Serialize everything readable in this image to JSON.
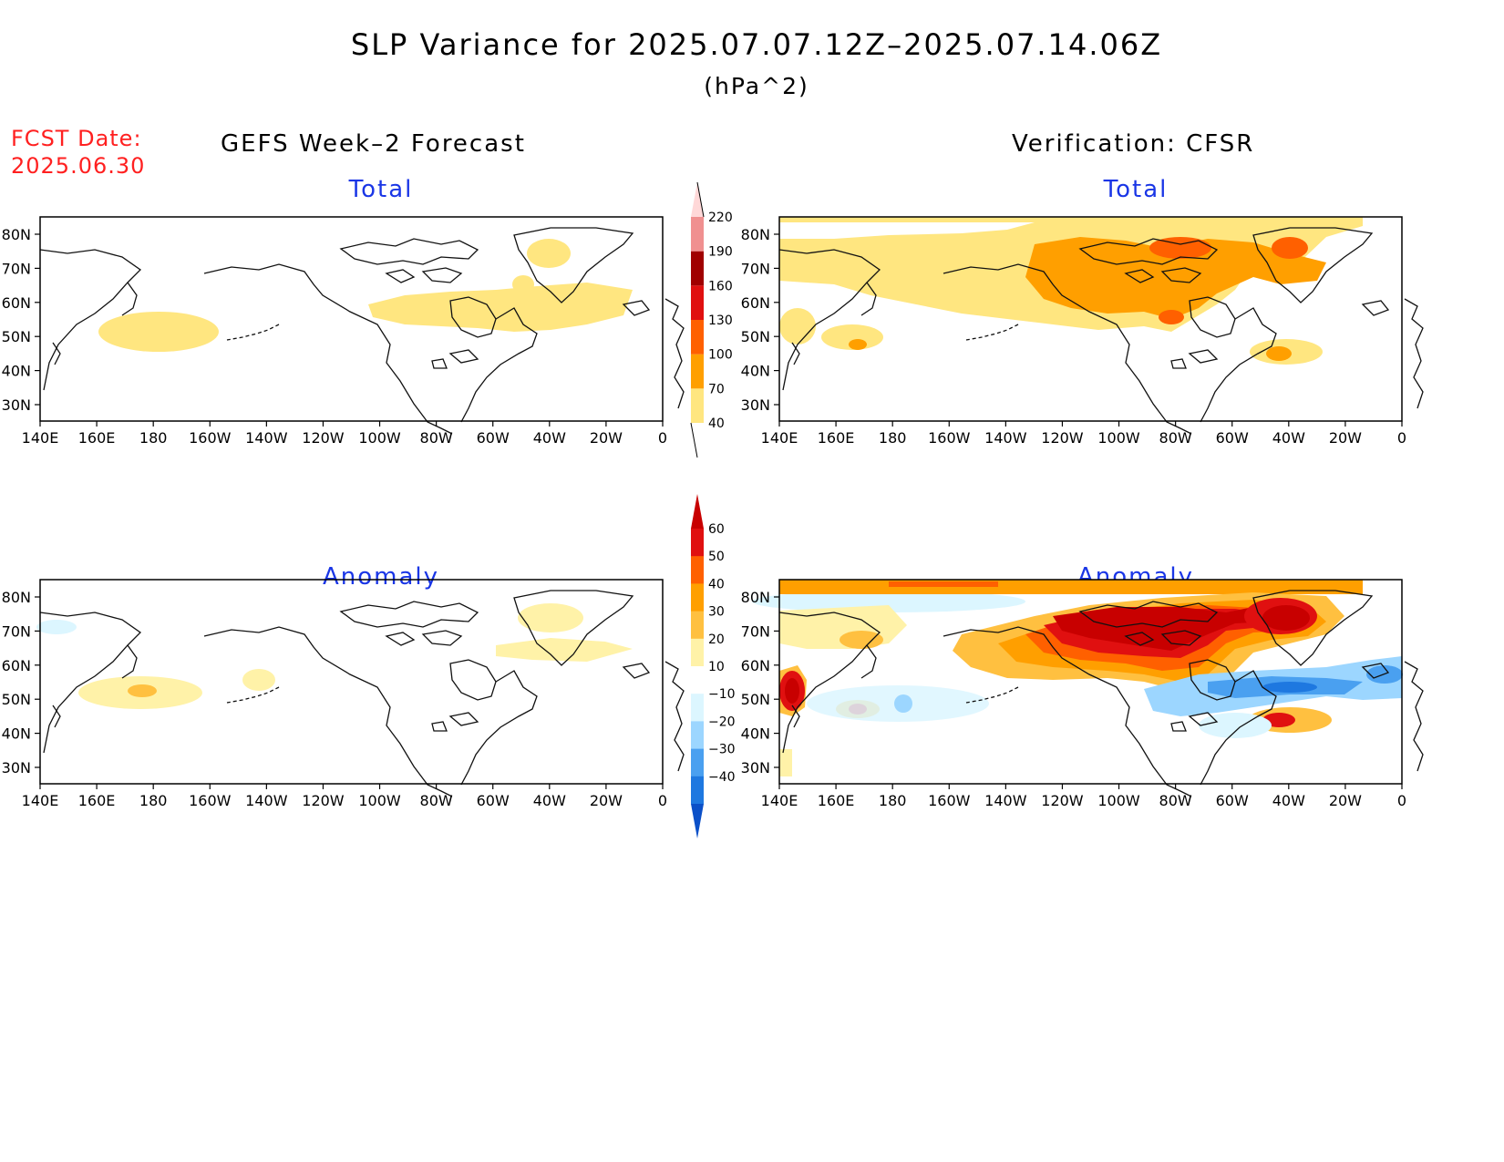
{
  "figure": {
    "title": "SLP Variance for 2025.07.07.12Z–2025.07.14.06Z",
    "units": "(hPa^2)",
    "fcst_label_line1": "FCST Date:",
    "fcst_label_line2": "2025.06.30",
    "left_column_title": "GEFS Week–2 Forecast",
    "right_column_title": "Verification: CFSR"
  },
  "panels": [
    {
      "id": "gefs-total",
      "title": "Total"
    },
    {
      "id": "cfsr-total",
      "title": "Total"
    },
    {
      "id": "gefs-anomaly",
      "title": "Anomaly"
    },
    {
      "id": "cfsr-anomaly",
      "title": "Anomaly"
    }
  ],
  "axes": {
    "lon_ticks": [
      "140E",
      "160E",
      "180",
      "160W",
      "140W",
      "120W",
      "100W",
      "80W",
      "60W",
      "40W",
      "20W",
      "0"
    ],
    "lat_ticks": [
      "80N",
      "70N",
      "60N",
      "50N",
      "40N",
      "30N"
    ]
  },
  "colorbars": {
    "total": {
      "levels": [
        "40",
        "70",
        "100",
        "130",
        "160",
        "190",
        "220"
      ],
      "colors": [
        "#ffe680",
        "#ff9f00",
        "#ff6000",
        "#e01010",
        "#a00000",
        "#f09090",
        "#ffd8d8"
      ]
    },
    "anomaly": {
      "levels": [
        "60",
        "50",
        "40",
        "30",
        "20",
        "10",
        "−10",
        "−20",
        "−30",
        "−40"
      ],
      "colors": [
        "#c80000",
        "#e01010",
        "#ff6000",
        "#ff9f00",
        "#ffc040",
        "#fff2a8",
        "#ffffff",
        "#dcf6ff",
        "#9cd6ff",
        "#4aa0f0",
        "#1e78e0",
        "#0b50c8"
      ]
    }
  }
}
